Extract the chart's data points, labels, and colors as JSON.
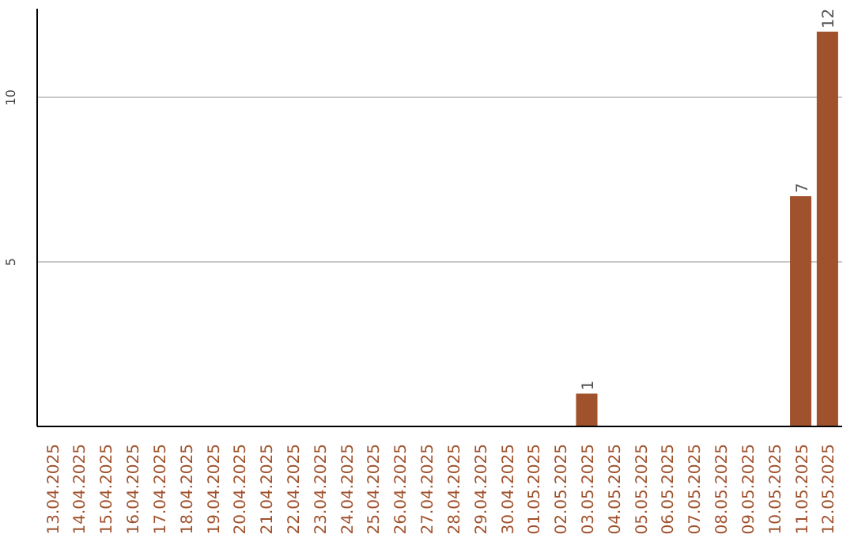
{
  "chart_data": {
    "type": "bar",
    "categories": [
      "13.04.2025",
      "14.04.2025",
      "15.04.2025",
      "16.04.2025",
      "17.04.2025",
      "18.04.2025",
      "19.04.2025",
      "20.04.2025",
      "21.04.2025",
      "22.04.2025",
      "23.04.2025",
      "24.04.2025",
      "25.04.2025",
      "26.04.2025",
      "27.04.2025",
      "28.04.2025",
      "29.04.2025",
      "30.04.2025",
      "01.05.2025",
      "02.05.2025",
      "03.05.2025",
      "04.05.2025",
      "05.05.2025",
      "06.05.2025",
      "07.05.2025",
      "08.05.2025",
      "09.05.2025",
      "10.05.2025",
      "11.05.2025",
      "12.05.2025"
    ],
    "values": [
      0,
      0,
      0,
      0,
      0,
      0,
      0,
      0,
      0,
      0,
      0,
      0,
      0,
      0,
      0,
      0,
      0,
      0,
      0,
      0,
      1,
      0,
      0,
      0,
      0,
      0,
      0,
      0,
      7,
      12
    ],
    "value_labels": [
      null,
      null,
      null,
      null,
      null,
      null,
      null,
      null,
      null,
      null,
      null,
      null,
      null,
      null,
      null,
      null,
      null,
      null,
      null,
      null,
      "1",
      null,
      null,
      null,
      null,
      null,
      null,
      null,
      "7",
      "12"
    ],
    "color": "#a0522d",
    "ylim": [
      0,
      12.7
    ],
    "yticks": [
      5,
      10
    ],
    "grid": "y"
  }
}
